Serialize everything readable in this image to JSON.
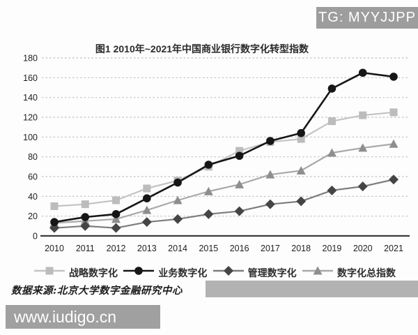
{
  "watermark_top": {
    "label": "TG: MYYJJPP"
  },
  "watermark_bottom": {
    "label": "www.iudigo.cn"
  },
  "source_note": "数据来源:北京大学数字金融研究中心",
  "chart_data": {
    "type": "line",
    "title": "图1 2010年~2021年中国商业银行数字化转型指数",
    "categories": [
      "2010",
      "2011",
      "2012",
      "2013",
      "2014",
      "2015",
      "2016",
      "2017",
      "2018",
      "2019",
      "2020",
      "2021"
    ],
    "series": [
      {
        "name": "战略数字化",
        "marker": "square",
        "color": "#bcbcbc",
        "line_color": "#c3c3c3",
        "values": [
          30,
          32,
          36,
          48,
          56,
          70,
          86,
          95,
          98,
          116,
          122,
          125
        ]
      },
      {
        "name": "业务数字化",
        "marker": "circle",
        "color": "#161616",
        "line_color": "#161616",
        "values": [
          14,
          19,
          22,
          38,
          54,
          72,
          81,
          96,
          104,
          149,
          165,
          161
        ]
      },
      {
        "name": "管理数字化",
        "marker": "diamond",
        "color": "#454545",
        "line_color": "#7d7d7d",
        "values": [
          8,
          10,
          8,
          14,
          17,
          22,
          25,
          32,
          35,
          46,
          50,
          57
        ]
      },
      {
        "name": "数字化总指数",
        "marker": "triangle",
        "color": "#8e8e8e",
        "line_color": "#a9a9a9",
        "values": [
          13,
          15,
          17,
          26,
          36,
          45,
          52,
          62,
          66,
          84,
          89,
          93
        ]
      }
    ],
    "ylim": [
      0,
      180
    ],
    "ytick_step": 20,
    "grid": "horizontal-dashed",
    "legend_position": "bottom"
  },
  "colors": {
    "badge_bg": "#9d9d9d",
    "redaction_bar": "#b2b2b2",
    "grid_line": "#c0c0c0",
    "axis_line": "#3c3c3c",
    "tick_text": "#1f1f1f"
  }
}
